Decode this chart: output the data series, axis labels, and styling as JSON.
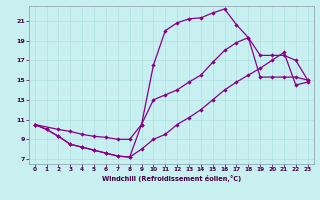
{
  "xlabel": "Windchill (Refroidissement éolien,°C)",
  "bg_color": "#c8f0f0",
  "line_color": "#880088",
  "xlim": [
    -0.5,
    23.5
  ],
  "ylim": [
    6.5,
    22.5
  ],
  "xticks": [
    0,
    1,
    2,
    3,
    4,
    5,
    6,
    7,
    8,
    9,
    10,
    11,
    12,
    13,
    14,
    15,
    16,
    17,
    18,
    19,
    20,
    21,
    22,
    23
  ],
  "yticks": [
    7,
    9,
    11,
    13,
    15,
    17,
    19,
    21
  ],
  "line1_x": [
    0,
    1,
    2,
    3,
    4,
    5,
    6,
    7,
    8,
    9,
    10,
    11,
    12,
    13,
    14,
    15,
    16,
    17,
    18,
    19,
    20,
    21,
    22,
    23
  ],
  "line1_y": [
    10.5,
    10.0,
    9.3,
    8.5,
    8.2,
    7.9,
    7.6,
    7.3,
    7.2,
    10.5,
    16.5,
    20.0,
    20.8,
    21.2,
    21.3,
    21.8,
    22.2,
    20.6,
    19.3,
    15.3,
    15.3,
    15.3,
    15.3,
    15.0
  ],
  "line2_x": [
    0,
    2,
    3,
    4,
    5,
    6,
    7,
    8,
    9,
    10,
    11,
    12,
    13,
    14,
    15,
    16,
    17,
    18,
    19,
    20,
    21,
    22,
    23
  ],
  "line2_y": [
    10.5,
    10.0,
    9.8,
    9.5,
    9.3,
    9.2,
    9.0,
    9.0,
    10.5,
    13.0,
    13.5,
    14.0,
    14.8,
    15.5,
    16.8,
    18.0,
    18.8,
    19.3,
    17.5,
    17.5,
    17.5,
    17.0,
    15.0
  ],
  "line3_x": [
    0,
    1,
    2,
    3,
    4,
    5,
    6,
    7,
    8,
    9,
    10,
    11,
    12,
    13,
    14,
    15,
    16,
    17,
    18,
    19,
    20,
    21,
    22,
    23
  ],
  "line3_y": [
    10.5,
    10.0,
    9.3,
    8.5,
    8.2,
    7.9,
    7.6,
    7.3,
    7.2,
    8.0,
    9.0,
    9.5,
    10.5,
    11.2,
    12.0,
    13.0,
    14.0,
    14.8,
    15.5,
    16.2,
    17.0,
    17.8,
    14.5,
    14.8
  ]
}
